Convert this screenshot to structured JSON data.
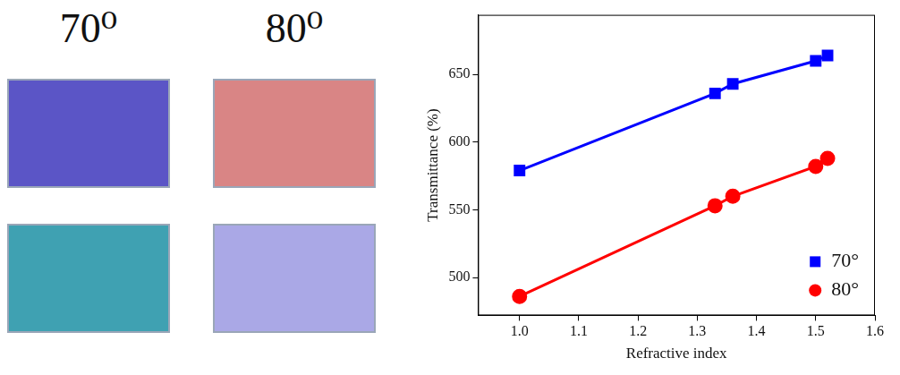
{
  "panel_labels": [
    "70⁰",
    "80⁰"
  ],
  "chart_data": {
    "type": "scatter",
    "x_label": "Refractive index",
    "y_label": "Transmittance (%)",
    "series": [
      {
        "name": "70°",
        "color": "#0000ff",
        "marker": "square",
        "line_style": "solid",
        "x": [
          1.0,
          1.33,
          1.36,
          1.5,
          1.52
        ],
        "values": [
          579,
          636,
          643,
          660,
          664
        ]
      },
      {
        "name": "80°",
        "color": "#ff0000",
        "marker": "circle",
        "line_style": "solid",
        "x": [
          1.0,
          1.33,
          1.36,
          1.5,
          1.52
        ],
        "values": [
          486,
          553,
          560,
          582,
          588
        ]
      }
    ],
    "xlim": [
      0.93,
      1.6
    ],
    "xticks": [
      {
        "value": 1,
        "label": "1.0"
      },
      {
        "value": 1.1,
        "label": "1.1"
      },
      {
        "value": 1.2,
        "label": "1.2"
      },
      {
        "value": 1.3,
        "label": "1.3"
      },
      {
        "value": 1.4,
        "label": "1.4"
      },
      {
        "value": 1.5,
        "label": "1.5"
      },
      {
        "value": 1.6,
        "label": "1.6"
      }
    ],
    "ylim": [
      472,
      694
    ],
    "yticks": [
      500,
      550,
      600,
      650
    ],
    "grid": false,
    "legend": "bottom right"
  }
}
